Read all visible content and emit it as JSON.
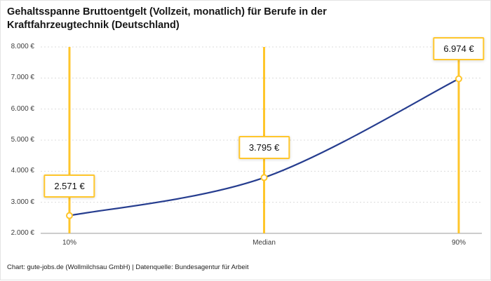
{
  "attribution": "Chart: gute-jobs.de (Wollmilchsau GmbH) | Datenquelle: Bundesagentur für Arbeit",
  "colors": {
    "accent": "#ffc62b",
    "line": "#263d8f",
    "grid": "#dcdcdc",
    "axis": "#9b9b9b",
    "text": "#161616"
  },
  "chart_data": {
    "type": "line",
    "title": "Gehaltsspanne Bruttoentgelt (Vollzeit, monatlich) für Berufe in der Kraftfahrzeugtechnik (Deutschland)",
    "categories": [
      "10%",
      "Median",
      "90%"
    ],
    "values": [
      2571,
      3795,
      6974
    ],
    "value_labels": [
      "2.571 €",
      "3.795 €",
      "6.974 €"
    ],
    "ylim": [
      2000,
      8000
    ],
    "yticks": [
      {
        "value": 2000,
        "label": "2.000 €"
      },
      {
        "value": 3000,
        "label": "3.000 €"
      },
      {
        "value": 4000,
        "label": "4.000 €"
      },
      {
        "value": 5000,
        "label": "5.000 €"
      },
      {
        "value": 6000,
        "label": "6.000 €"
      },
      {
        "value": 7000,
        "label": "7.000 €"
      },
      {
        "value": 8000,
        "label": "8.000 €"
      }
    ],
    "grid": true,
    "legend_position": "none",
    "xlabel": "",
    "ylabel": ""
  }
}
